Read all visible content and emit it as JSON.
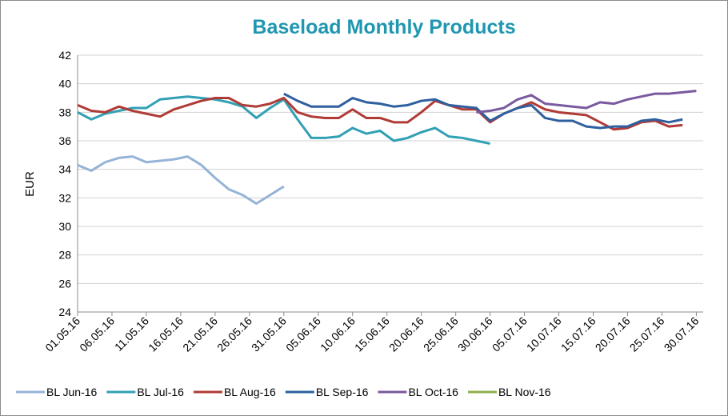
{
  "chart_data": {
    "type": "line",
    "title": "Baseload Monthly Products",
    "ylabel": "EUR",
    "x": [
      "01.05.16",
      "03.05.16",
      "05.05.16",
      "07.05.16",
      "09.05.16",
      "11.05.16",
      "13.05.16",
      "15.05.16",
      "17.05.16",
      "19.05.16",
      "21.05.16",
      "23.05.16",
      "25.05.16",
      "27.05.16",
      "29.05.16",
      "31.05.16",
      "02.06.16",
      "04.06.16",
      "06.06.16",
      "08.06.16",
      "10.06.16",
      "12.06.16",
      "14.06.16",
      "16.06.16",
      "18.06.16",
      "20.06.16",
      "22.06.16",
      "24.06.16",
      "26.06.16",
      "28.06.16",
      "30.06.16",
      "02.07.16",
      "04.07.16",
      "06.07.16",
      "08.07.16",
      "10.07.16",
      "12.07.16",
      "14.07.16",
      "16.07.16",
      "18.07.16",
      "20.07.16",
      "22.07.16",
      "24.07.16",
      "26.07.16",
      "28.07.16",
      "30.07.16"
    ],
    "series": [
      {
        "name": "BL Jun-16",
        "color": "#95b3d7",
        "values": [
          34.3,
          33.9,
          34.5,
          34.8,
          34.9,
          34.5,
          34.6,
          34.7,
          34.9,
          34.3,
          33.4,
          32.6,
          32.2,
          31.6,
          32.2,
          32.8,
          null,
          null,
          null,
          null,
          null,
          null,
          null,
          null,
          null,
          null,
          null,
          null,
          null,
          null,
          null,
          null,
          null,
          null,
          null,
          null,
          null,
          null,
          null,
          null,
          null,
          null,
          null,
          null,
          null,
          null
        ]
      },
      {
        "name": "BL Jul-16",
        "color": "#31a0b4",
        "values": [
          38.0,
          37.5,
          37.9,
          38.1,
          38.3,
          38.3,
          38.9,
          39.0,
          39.1,
          39.0,
          38.9,
          38.7,
          38.4,
          37.6,
          38.3,
          38.9,
          37.5,
          36.2,
          36.2,
          36.3,
          36.9,
          36.5,
          36.7,
          36.0,
          36.2,
          36.6,
          36.9,
          36.3,
          36.2,
          36.0,
          35.8,
          null,
          null,
          null,
          null,
          null,
          null,
          null,
          null,
          null,
          null,
          null,
          null,
          null,
          null,
          null
        ]
      },
      {
        "name": "BL Aug-16",
        "color": "#b03a36",
        "values": [
          38.5,
          38.1,
          38.0,
          38.4,
          38.1,
          37.9,
          37.7,
          38.2,
          38.5,
          38.8,
          39.0,
          39.0,
          38.5,
          38.4,
          38.6,
          39.0,
          38.0,
          37.7,
          37.6,
          37.6,
          38.2,
          37.6,
          37.6,
          37.3,
          37.3,
          38.0,
          38.8,
          38.5,
          38.2,
          38.2,
          37.3,
          37.9,
          38.3,
          38.7,
          38.2,
          38.0,
          37.9,
          37.8,
          37.3,
          36.8,
          36.9,
          37.3,
          37.4,
          37.0,
          37.1,
          null
        ]
      },
      {
        "name": "BL Sep-16",
        "color": "#2e5f9e",
        "values": [
          null,
          null,
          null,
          null,
          null,
          null,
          null,
          null,
          null,
          null,
          null,
          null,
          null,
          null,
          null,
          39.3,
          38.8,
          38.4,
          38.4,
          38.4,
          39.0,
          38.7,
          38.6,
          38.4,
          38.5,
          38.8,
          38.9,
          38.5,
          38.4,
          38.3,
          37.4,
          37.9,
          38.3,
          38.5,
          37.6,
          37.4,
          37.4,
          37.0,
          36.9,
          37.0,
          37.0,
          37.4,
          37.5,
          37.3,
          37.5,
          null
        ]
      },
      {
        "name": "BL Oct-16",
        "color": "#7a5a9e",
        "values": [
          null,
          null,
          null,
          null,
          null,
          null,
          null,
          null,
          null,
          null,
          null,
          null,
          null,
          null,
          null,
          null,
          null,
          null,
          null,
          null,
          null,
          null,
          null,
          null,
          null,
          null,
          null,
          null,
          null,
          38.0,
          38.1,
          38.3,
          38.9,
          39.2,
          38.6,
          38.5,
          38.4,
          38.3,
          38.7,
          38.6,
          38.9,
          39.1,
          39.3,
          39.3,
          39.4,
          39.5
        ]
      },
      {
        "name": "BL Nov-16",
        "color": "#8db04a",
        "values": [
          null,
          null,
          null,
          null,
          null,
          null,
          null,
          null,
          null,
          null,
          null,
          null,
          null,
          null,
          null,
          null,
          null,
          null,
          null,
          null,
          null,
          null,
          null,
          null,
          null,
          null,
          null,
          null,
          null,
          null,
          null,
          null,
          null,
          null,
          null,
          null,
          null,
          null,
          null,
          null,
          null,
          null,
          null,
          null,
          null,
          null
        ]
      }
    ],
    "xlim": [
      "01.05.16",
      "31.07.16"
    ],
    "xticks": [
      "01.05.16",
      "06.05.16",
      "11.05.16",
      "16.05.16",
      "21.05.16",
      "26.05.16",
      "31.05.16",
      "05.06.16",
      "10.06.16",
      "15.06.16",
      "20.06.16",
      "25.06.16",
      "30.06.16",
      "05.07.16",
      "10.07.16",
      "15.07.16",
      "20.07.16",
      "25.07.16",
      "30.07.16"
    ],
    "ylim": [
      24,
      42
    ],
    "yticks": [
      24,
      26,
      28,
      30,
      32,
      34,
      36,
      38,
      40,
      42
    ],
    "grid": true,
    "legend": "bottom"
  }
}
